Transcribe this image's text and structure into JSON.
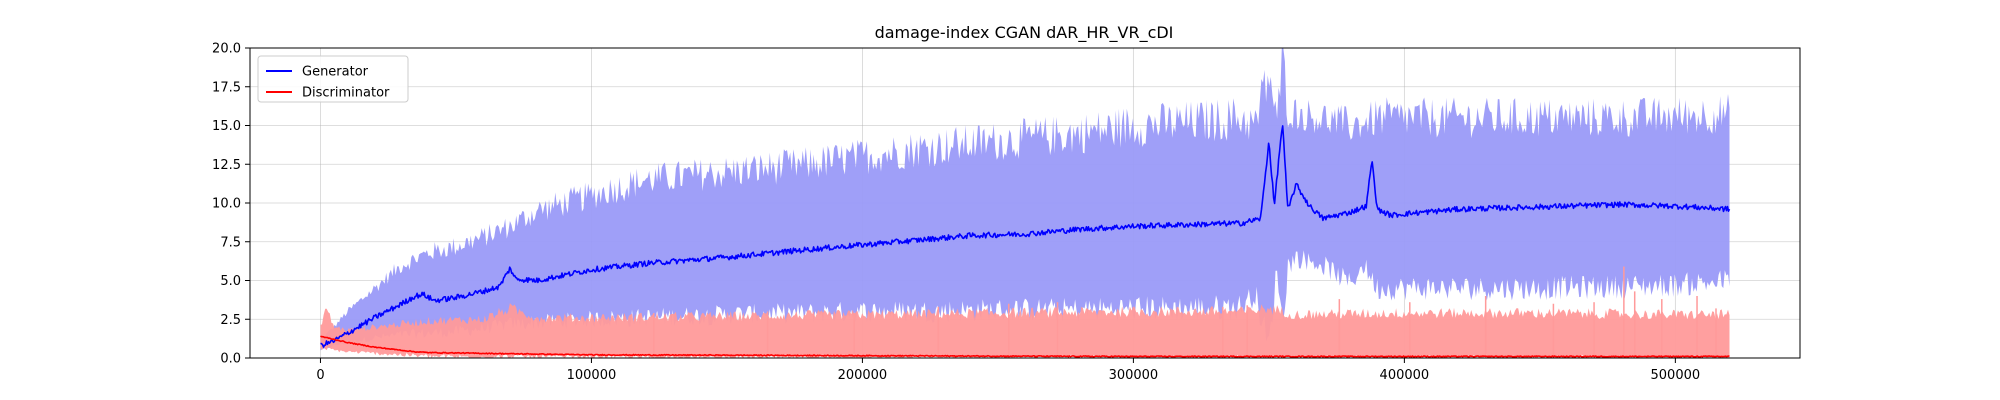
{
  "chart_data": {
    "type": "line",
    "title": "damage-index   CGAN    dAR_HR_VR_cDI",
    "xlabel": "",
    "ylabel": "",
    "xlim": [
      -26000,
      546000
    ],
    "ylim": [
      0,
      20
    ],
    "x_ticks": [
      0,
      100000,
      200000,
      300000,
      400000,
      500000
    ],
    "x_tick_labels": [
      "0",
      "100000",
      "200000",
      "300000",
      "400000",
      "500000"
    ],
    "y_ticks": [
      0,
      2.5,
      5,
      7.5,
      10,
      12.5,
      15,
      17.5,
      20
    ],
    "y_tick_labels": [
      "0.0",
      "2.5",
      "5.0",
      "7.5",
      "10.0",
      "12.5",
      "15.0",
      "17.5",
      "20.0"
    ],
    "grid": true,
    "legend": "top-left",
    "colors": {
      "generator": "#0000ff",
      "generator_band": "#9a9af8",
      "discriminator": "#ff0000",
      "discriminator_band": "#ff9a9a"
    },
    "series": [
      {
        "name": "Generator",
        "x": [
          0,
          5000,
          10000,
          20000,
          30000,
          35000,
          38000,
          42000,
          50000,
          60000,
          66000,
          70000,
          72000,
          80000,
          100000,
          120000,
          150000,
          180000,
          200000,
          220000,
          240000,
          260000,
          280000,
          300000,
          320000,
          340000,
          347000,
          350000,
          352000,
          355000,
          357000,
          360000,
          365000,
          370000,
          380000,
          386000,
          388000,
          390000,
          395000,
          400000,
          420000,
          440000,
          460000,
          480000,
          500000,
          520000
        ],
        "values": [
          0.8,
          1.1,
          1.6,
          2.6,
          3.5,
          4.0,
          4.1,
          3.7,
          3.9,
          4.3,
          4.6,
          5.8,
          5.1,
          5.0,
          5.7,
          6.1,
          6.5,
          7.0,
          7.3,
          7.6,
          7.9,
          8.0,
          8.3,
          8.5,
          8.6,
          8.7,
          9.0,
          14.0,
          9.8,
          15.2,
          9.5,
          11.2,
          9.8,
          9.0,
          9.4,
          9.8,
          12.8,
          9.6,
          9.2,
          9.3,
          9.6,
          9.7,
          9.8,
          9.9,
          9.8,
          9.6
        ]
      },
      {
        "name": "Discriminator",
        "x": [
          0,
          5000,
          10000,
          20000,
          30000,
          35000,
          40000,
          60000,
          80000,
          100000,
          150000,
          200000,
          250000,
          300000,
          350000,
          400000,
          450000,
          500000,
          520000
        ],
        "values": [
          1.4,
          1.2,
          1.0,
          0.7,
          0.5,
          0.4,
          0.35,
          0.3,
          0.25,
          0.2,
          0.18,
          0.15,
          0.12,
          0.1,
          0.1,
          0.1,
          0.1,
          0.1,
          0.1
        ]
      }
    ],
    "bands": [
      {
        "series": "Generator",
        "x": [
          0,
          5000,
          10000,
          20000,
          30000,
          40000,
          50000,
          60000,
          70000,
          80000,
          100000,
          120000,
          150000,
          180000,
          200000,
          220000,
          250000,
          280000,
          300000,
          320000,
          340000,
          345000,
          350000,
          353000,
          355000,
          357000,
          360000,
          370000,
          380000,
          385000,
          390000,
          400000,
          420000,
          450000,
          480000,
          500000,
          520000
        ],
        "low": [
          0.5,
          0.8,
          1.0,
          1.3,
          1.5,
          1.6,
          1.7,
          1.9,
          2.2,
          2.3,
          2.5,
          2.6,
          2.8,
          2.9,
          3.0,
          3.0,
          3.1,
          3.1,
          3.2,
          3.2,
          3.3,
          4.2,
          0.5,
          6.0,
          2.0,
          6.0,
          6.5,
          6.0,
          4.8,
          6.0,
          4.5,
          4.5,
          4.5,
          4.5,
          4.6,
          4.7,
          5.0
        ],
        "high": [
          1.2,
          2.0,
          3.0,
          4.5,
          6.0,
          6.8,
          7.2,
          7.8,
          8.5,
          9.5,
          10.5,
          11.5,
          12.0,
          12.5,
          13.0,
          13.5,
          14.0,
          14.5,
          15.0,
          15.2,
          15.5,
          15.0,
          18.5,
          15.0,
          20.0,
          16.0,
          15.8,
          15.5,
          15.0,
          15.2,
          15.5,
          15.5,
          15.5,
          15.5,
          15.5,
          15.6,
          15.8
        ]
      },
      {
        "series": "Discriminator",
        "x": [
          0,
          2000,
          5000,
          10000,
          20000,
          30000,
          40000,
          60000,
          70000,
          80000,
          100000,
          150000,
          200000,
          250000,
          300000,
          340000,
          350000,
          360000,
          400000,
          450000,
          500000,
          520000
        ],
        "low": [
          0.6,
          0.6,
          0.5,
          0.4,
          0.3,
          0.2,
          0.1,
          0.05,
          0.05,
          0.05,
          0.05,
          0.0,
          0.0,
          0.0,
          0.0,
          0.0,
          0.0,
          0.0,
          0.0,
          0.0,
          0.0,
          0.0
        ],
        "high": [
          2.0,
          3.3,
          2.0,
          1.8,
          2.0,
          2.2,
          2.4,
          2.5,
          3.2,
          2.6,
          2.6,
          2.7,
          2.8,
          2.9,
          3.0,
          3.0,
          3.2,
          2.8,
          2.9,
          2.9,
          2.8,
          2.8
        ]
      }
    ],
    "spikes": [
      {
        "series": "Discriminator",
        "x": [
          123000,
          165000,
          197000,
          228000,
          254000,
          272000,
          333000,
          342000,
          376000,
          402000,
          430000,
          455000,
          470000,
          481000,
          485000,
          495000,
          508000,
          515000
        ],
        "values": [
          2.9,
          3.0,
          2.9,
          3.3,
          3.5,
          3.6,
          3.3,
          3.4,
          3.8,
          3.6,
          4.0,
          3.5,
          3.6,
          5.9,
          4.3,
          3.8,
          4.0,
          3.2
        ]
      }
    ]
  }
}
